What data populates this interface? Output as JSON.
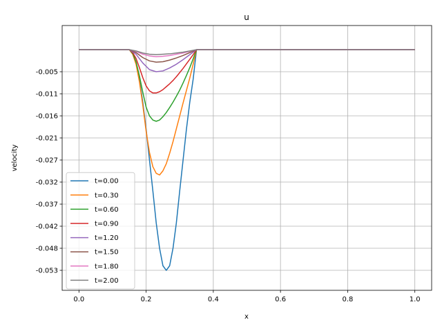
{
  "chart_data": {
    "type": "line",
    "title": "u",
    "xlabel": "x",
    "ylabel": "velocity",
    "xlim": [
      -0.05,
      1.05
    ],
    "ylim": [
      -0.0578,
      0.0058
    ],
    "grid": true,
    "legend_position": "lower-left",
    "x_ticks": [
      {
        "value": 0.0,
        "label": "0.0"
      },
      {
        "value": 0.2,
        "label": "0.2"
      },
      {
        "value": 0.4,
        "label": "0.4"
      },
      {
        "value": 0.6,
        "label": "0.6"
      },
      {
        "value": 0.8,
        "label": "0.8"
      },
      {
        "value": 1.0,
        "label": "1.0"
      }
    ],
    "y_ticks": [
      {
        "value": -0.0053,
        "label": "-0.005"
      },
      {
        "value": -0.0106,
        "label": "-0.011"
      },
      {
        "value": -0.0159,
        "label": "-0.016"
      },
      {
        "value": -0.0212,
        "label": "-0.021"
      },
      {
        "value": -0.0265,
        "label": "-0.027"
      },
      {
        "value": -0.0318,
        "label": "-0.032"
      },
      {
        "value": -0.0371,
        "label": "-0.037"
      },
      {
        "value": -0.0424,
        "label": "-0.042"
      },
      {
        "value": -0.0477,
        "label": "-0.048"
      },
      {
        "value": -0.053,
        "label": "-0.053"
      }
    ],
    "series": [
      {
        "name": "t=0.00",
        "color": "#1f77b4",
        "x": [
          0.0,
          0.15,
          0.16,
          0.17,
          0.18,
          0.19,
          0.2,
          0.21,
          0.22,
          0.23,
          0.24,
          0.25,
          0.26,
          0.27,
          0.28,
          0.29,
          0.3,
          0.31,
          0.32,
          0.33,
          0.34,
          0.35,
          1.0
        ],
        "y": [
          0.0,
          0.0,
          -0.0007,
          -0.0031,
          -0.0071,
          -0.0126,
          -0.0191,
          -0.0265,
          -0.0339,
          -0.0416,
          -0.0477,
          -0.0519,
          -0.053,
          -0.0519,
          -0.0477,
          -0.0416,
          -0.0339,
          -0.0265,
          -0.0191,
          -0.0126,
          -0.0071,
          0.0,
          0.0
        ]
      },
      {
        "name": "t=0.30",
        "color": "#ff7f0e",
        "x": [
          0.0,
          0.15,
          0.16,
          0.17,
          0.18,
          0.19,
          0.2,
          0.21,
          0.22,
          0.23,
          0.24,
          0.25,
          0.26,
          0.27,
          0.28,
          0.29,
          0.3,
          0.31,
          0.32,
          0.33,
          0.34,
          0.35,
          1.0
        ],
        "y": [
          0.0,
          0.0,
          -0.0011,
          -0.0035,
          -0.0077,
          -0.0133,
          -0.0196,
          -0.0247,
          -0.0281,
          -0.0297,
          -0.0301,
          -0.0291,
          -0.0274,
          -0.0249,
          -0.0221,
          -0.019,
          -0.0159,
          -0.0128,
          -0.0098,
          -0.0068,
          -0.0035,
          0.0,
          0.0
        ]
      },
      {
        "name": "t=0.60",
        "color": "#2ca02c",
        "x": [
          0.0,
          0.15,
          0.16,
          0.17,
          0.18,
          0.19,
          0.2,
          0.21,
          0.22,
          0.23,
          0.24,
          0.25,
          0.26,
          0.27,
          0.28,
          0.29,
          0.3,
          0.31,
          0.32,
          0.33,
          0.34,
          0.35,
          1.0
        ],
        "y": [
          0.0,
          0.0,
          -0.0009,
          -0.0029,
          -0.0063,
          -0.0102,
          -0.0138,
          -0.0159,
          -0.0169,
          -0.0172,
          -0.0169,
          -0.0161,
          -0.0151,
          -0.0139,
          -0.0126,
          -0.0112,
          -0.0097,
          -0.008,
          -0.0062,
          -0.0043,
          -0.0022,
          0.0,
          0.0
        ]
      },
      {
        "name": "t=0.90",
        "color": "#d62728",
        "x": [
          0.0,
          0.15,
          0.16,
          0.17,
          0.18,
          0.19,
          0.2,
          0.21,
          0.22,
          0.23,
          0.24,
          0.25,
          0.26,
          0.27,
          0.28,
          0.29,
          0.3,
          0.31,
          0.32,
          0.33,
          0.34,
          0.35,
          1.0
        ],
        "y": [
          0.0,
          0.0,
          -0.0007,
          -0.0021,
          -0.0043,
          -0.0067,
          -0.0087,
          -0.0099,
          -0.0104,
          -0.0104,
          -0.0101,
          -0.0096,
          -0.0089,
          -0.0082,
          -0.0074,
          -0.0065,
          -0.0055,
          -0.0045,
          -0.0034,
          -0.0023,
          -0.0012,
          0.0,
          0.0
        ]
      },
      {
        "name": "t=1.20",
        "color": "#9467bd",
        "x": [
          0.0,
          0.15,
          0.17,
          0.19,
          0.21,
          0.23,
          0.25,
          0.27,
          0.29,
          0.31,
          0.33,
          0.35,
          1.0
        ],
        "y": [
          0.0,
          0.0,
          -0.0011,
          -0.0032,
          -0.0048,
          -0.0053,
          -0.0051,
          -0.0044,
          -0.0035,
          -0.0024,
          -0.0012,
          0.0,
          0.0
        ]
      },
      {
        "name": "t=1.50",
        "color": "#8c564b",
        "x": [
          0.0,
          0.15,
          0.17,
          0.19,
          0.21,
          0.23,
          0.25,
          0.27,
          0.29,
          0.31,
          0.33,
          0.35,
          1.0
        ],
        "y": [
          0.0,
          0.0,
          -0.0007,
          -0.0019,
          -0.0027,
          -0.003,
          -0.0029,
          -0.0025,
          -0.002,
          -0.0014,
          -0.0007,
          0.0,
          0.0
        ]
      },
      {
        "name": "t=1.80",
        "color": "#e377c2",
        "x": [
          0.0,
          0.15,
          0.17,
          0.19,
          0.21,
          0.23,
          0.25,
          0.27,
          0.29,
          0.31,
          0.33,
          0.35,
          1.0
        ],
        "y": [
          0.0,
          0.0,
          -0.0004,
          -0.0011,
          -0.0015,
          -0.0017,
          -0.0016,
          -0.0014,
          -0.0011,
          -0.0008,
          -0.0004,
          0.0,
          0.0
        ]
      },
      {
        "name": "t=2.00",
        "color": "#7f7f7f",
        "x": [
          0.0,
          0.15,
          0.17,
          0.19,
          0.21,
          0.23,
          0.25,
          0.27,
          0.29,
          0.31,
          0.33,
          0.35,
          1.0
        ],
        "y": [
          0.0,
          0.0,
          -0.0003,
          -0.0008,
          -0.0011,
          -0.0012,
          -0.0011,
          -0.001,
          -0.0008,
          -0.0006,
          -0.0003,
          0.0,
          0.0
        ]
      }
    ]
  }
}
